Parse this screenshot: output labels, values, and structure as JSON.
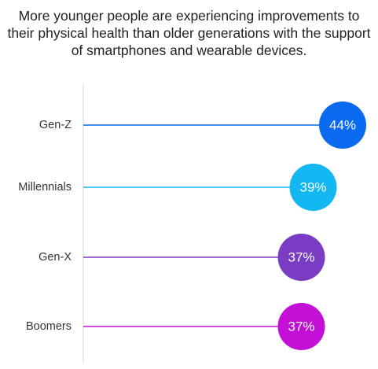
{
  "chart_data": {
    "type": "lollipop",
    "title": "More younger people are experiencing improvements to their physical health than older generations with the support of smartphones and wearable devices.",
    "categories": [
      "Gen-Z",
      "Millennials",
      "Gen-X",
      "Boomers"
    ],
    "values": [
      44,
      39,
      37,
      37
    ],
    "value_labels": [
      "44%",
      "39%",
      "37%",
      "37%"
    ],
    "colors": [
      "#0a6af0",
      "#13b7f1",
      "#7b3cc4",
      "#c40fd6"
    ],
    "xlim": [
      0,
      55
    ],
    "grid": false,
    "legend": "none"
  }
}
